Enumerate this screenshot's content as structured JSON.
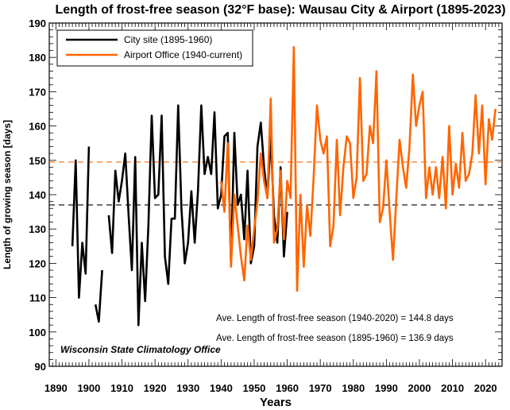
{
  "chart_data": {
    "type": "line",
    "title": "Length of frost-free season (32°F base): Wausau City & Airport (1895-2023)",
    "xlabel": "Years",
    "ylabel": "Length of growing season [days]",
    "xlim": [
      1888,
      2025
    ],
    "ylim": [
      90,
      190
    ],
    "xticks": [
      "1890",
      "1900",
      "1910",
      "1920",
      "1930",
      "1940",
      "1950",
      "1960",
      "1970",
      "1980",
      "1990",
      "2000",
      "2010",
      "2020"
    ],
    "yticks": [
      "90",
      "100",
      "110",
      "120",
      "130",
      "140",
      "150",
      "160",
      "170",
      "180",
      "190"
    ],
    "legend_position": "top-left",
    "series": [
      {
        "name": "City site (1895-1960)",
        "color": "#000000",
        "x": [
          1895,
          1896,
          1897,
          1898,
          1899,
          1900,
          1901,
          1902,
          1903,
          1904,
          1905,
          1906,
          1907,
          1908,
          1909,
          1910,
          1911,
          1912,
          1913,
          1914,
          1915,
          1916,
          1917,
          1918,
          1919,
          1920,
          1921,
          1922,
          1923,
          1924,
          1925,
          1926,
          1927,
          1928,
          1929,
          1930,
          1931,
          1932,
          1933,
          1934,
          1935,
          1936,
          1937,
          1938,
          1939,
          1940,
          1941,
          1942,
          1943,
          1944,
          1945,
          1946,
          1947,
          1948,
          1949,
          1950,
          1951,
          1952,
          1953,
          1954,
          1955,
          1956,
          1957,
          1958,
          1959,
          1960
        ],
        "y": [
          125,
          150,
          110,
          126,
          117,
          154,
          null,
          108,
          103,
          118,
          null,
          134,
          123,
          147,
          138,
          144,
          152,
          134,
          118,
          151,
          102,
          126,
          109,
          131,
          163,
          139,
          140,
          163,
          122,
          114,
          133,
          133,
          166,
          136,
          120,
          126,
          141,
          126,
          141,
          166,
          146,
          151,
          146,
          164,
          136,
          140,
          157,
          158,
          120,
          158,
          137,
          140,
          127,
          147,
          120,
          125,
          154,
          161,
          148,
          139,
          157,
          134,
          126,
          148,
          122,
          135
        ]
      },
      {
        "name": "Airport Office (1940-current)",
        "color": "#ff6600",
        "x": [
          1940,
          1941,
          1942,
          1943,
          1944,
          1945,
          1946,
          1947,
          1948,
          1949,
          1950,
          1951,
          1952,
          1953,
          1954,
          1955,
          1956,
          1957,
          1958,
          1959,
          1960,
          1961,
          1962,
          1963,
          1964,
          1965,
          1966,
          1967,
          1968,
          1969,
          1970,
          1971,
          1972,
          1973,
          1974,
          1975,
          1976,
          1977,
          1978,
          1979,
          1980,
          1981,
          1982,
          1983,
          1984,
          1985,
          1986,
          1987,
          1988,
          1989,
          1990,
          1991,
          1992,
          1993,
          1994,
          1995,
          1996,
          1997,
          1998,
          1999,
          2000,
          2001,
          2002,
          2003,
          2004,
          2005,
          2006,
          2007,
          2008,
          2009,
          2010,
          2011,
          2012,
          2013,
          2014,
          2015,
          2016,
          2017,
          2018,
          2019,
          2020,
          2021,
          2022,
          2023
        ],
        "y": [
          144,
          135,
          155,
          119,
          140,
          131,
          122,
          115,
          131,
          121,
          130,
          138,
          152,
          144,
          139,
          168,
          126,
          130,
          147,
          127,
          144,
          139,
          183,
          112,
          140,
          119,
          137,
          128,
          145,
          166,
          156,
          152,
          157,
          125,
          131,
          156,
          134,
          148,
          157,
          155,
          139,
          145,
          174,
          144,
          146,
          160,
          155,
          176,
          132,
          136,
          150,
          135,
          121,
          139,
          156,
          148,
          142,
          154,
          175,
          160,
          166,
          170,
          139,
          148,
          140,
          148,
          139,
          151,
          136,
          160,
          140,
          149,
          142,
          158,
          144,
          146,
          152,
          169,
          152,
          166,
          143,
          162,
          156,
          165
        ]
      }
    ],
    "reference_lines": [
      {
        "value": 149.5,
        "color": "#ff6600"
      },
      {
        "value": 137,
        "color": "#000000"
      }
    ],
    "annotations": [
      "Ave. Length of frost-free season (1940-2020) = 144.8 days",
      "Ave. Length of frost-free season (1895-1960) = 136.9 days",
      "Wisconsin State Climatology Office"
    ]
  }
}
